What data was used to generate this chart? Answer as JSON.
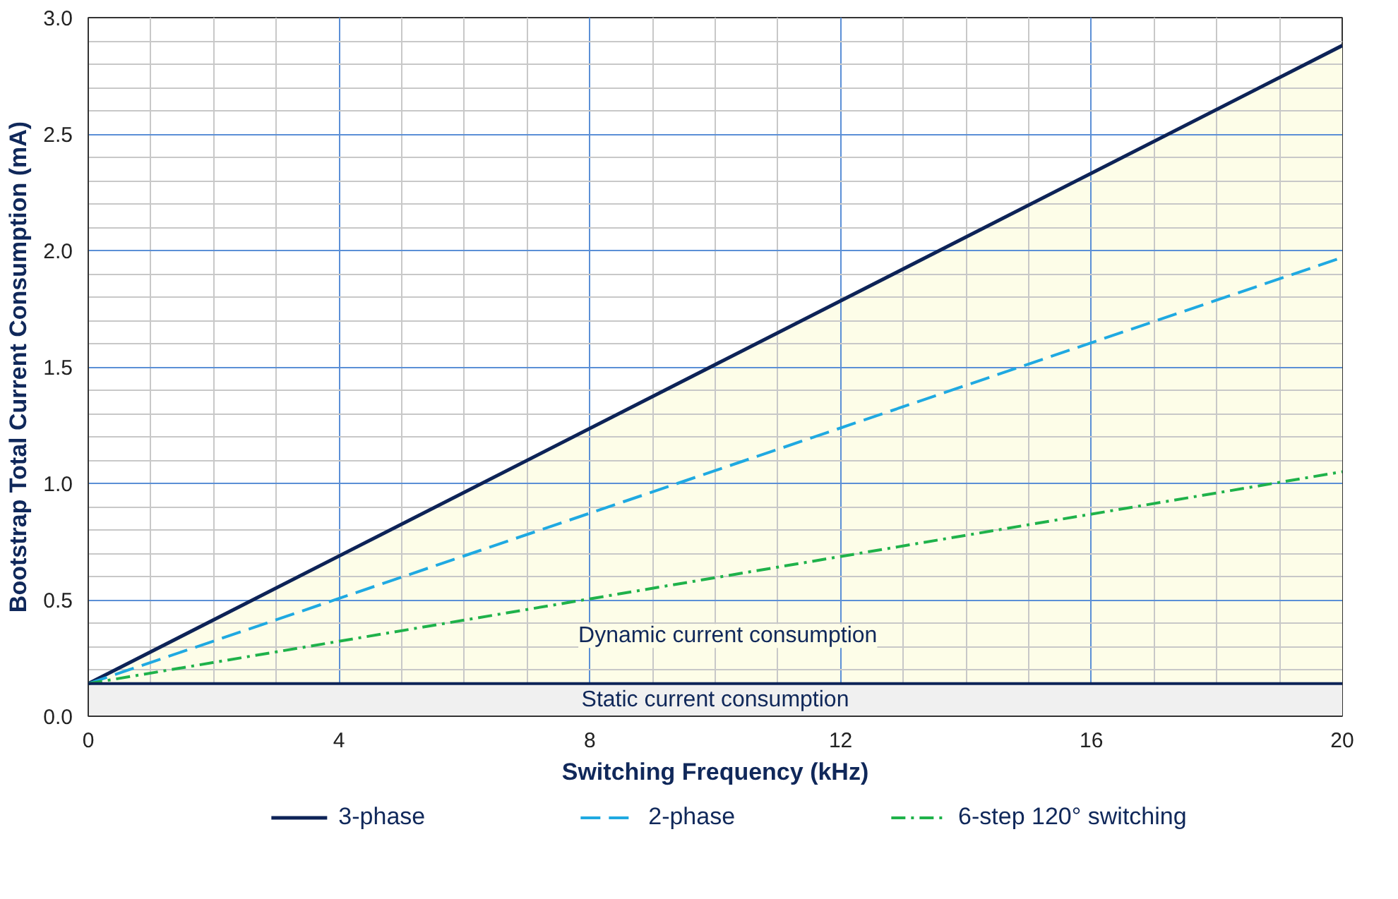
{
  "chart_data": {
    "type": "line",
    "xlabel": "Switching Frequency (kHz)",
    "ylabel": "Bootstrap Total Current Consumption (mA)",
    "x": [
      0,
      20
    ],
    "series": [
      {
        "name": "3-phase",
        "type": "area",
        "color": "#0d2357",
        "line_style": "solid",
        "values": [
          0.14,
          2.88
        ]
      },
      {
        "name": "2-phase",
        "color": "#1fa9e1",
        "line_style": "dashed",
        "values": [
          0.14,
          1.97
        ]
      },
      {
        "name": "6-step 120° switching",
        "color": "#1fb24a",
        "line_style": "dashdot",
        "values": [
          0.14,
          1.05
        ]
      }
    ],
    "xlim": [
      0,
      20
    ],
    "xticks": [
      0,
      4,
      8,
      12,
      16,
      20
    ],
    "ylim": [
      0,
      3
    ],
    "yticks": [
      {
        "value": 0,
        "label": "0.0"
      },
      {
        "value": 0.5,
        "label": "0.5"
      },
      {
        "value": 1,
        "label": "1.0"
      },
      {
        "value": 1.5,
        "label": "1.5"
      },
      {
        "value": 2,
        "label": "2.0"
      },
      {
        "value": 2.5,
        "label": "2.5"
      },
      {
        "value": 3,
        "label": "3.0"
      }
    ],
    "bands": [
      {
        "axis": "y",
        "from": 0,
        "to": 0.14,
        "label": "Static current consumption",
        "color": "#f0f0f0"
      }
    ],
    "ref_lines": [
      {
        "axis": "y",
        "value": 0.14,
        "color": "#0d2357"
      }
    ],
    "annotations": [
      "Dynamic current consumption"
    ],
    "grid": true,
    "legend": "bottom"
  }
}
